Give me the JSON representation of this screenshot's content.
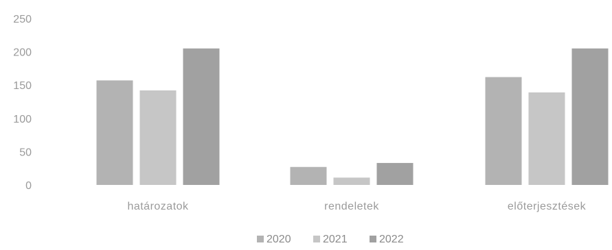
{
  "chart_data": {
    "type": "bar",
    "title": "",
    "xlabel": "",
    "ylabel": "",
    "ylim": [
      0,
      250
    ],
    "yticks": [
      "0",
      "50",
      "100",
      "150",
      "200",
      "250"
    ],
    "categories": [
      "határozatok",
      "rendeletek",
      "előterjesztések"
    ],
    "series": [
      {
        "name": "2020",
        "values": [
          157,
          27,
          162
        ],
        "color": "#b3b3b3"
      },
      {
        "name": "2021",
        "values": [
          142,
          11,
          139
        ],
        "color": "#c6c6c6"
      },
      {
        "name": "2022",
        "values": [
          205,
          33,
          205
        ],
        "color": "#a1a1a1"
      }
    ],
    "grid": false,
    "legend": "bottom-center"
  }
}
